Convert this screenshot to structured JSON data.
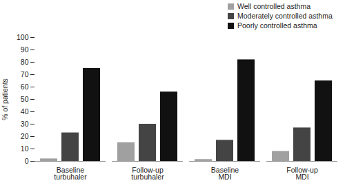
{
  "chart_data": {
    "type": "bar",
    "categories": [
      "Baseline turbuhaler",
      "Follow-up turbuhaler",
      "Baseline MDI",
      "Follow-up MDI"
    ],
    "series": [
      {
        "name": "Well controlled asthma",
        "color": "#a0a0a0",
        "values": [
          2,
          15,
          1.5,
          8
        ]
      },
      {
        "name": "Moderately controlled asthma",
        "color": "#444444",
        "values": [
          23,
          30,
          17,
          27
        ]
      },
      {
        "name": "Poorly controlled asthma",
        "color": "#111111",
        "values": [
          75,
          56,
          82,
          65
        ]
      }
    ],
    "y_label": "% of patients",
    "ylim": [
      0,
      100
    ],
    "yticks": [
      0,
      10,
      20,
      30,
      40,
      50,
      60,
      70,
      80,
      90,
      100
    ],
    "grid": false,
    "legend": "top-right"
  }
}
